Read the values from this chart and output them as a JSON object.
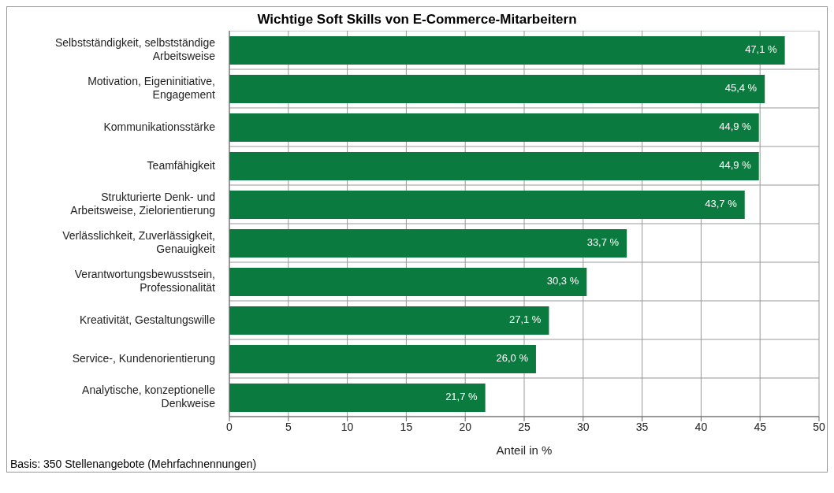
{
  "chart_data": {
    "type": "bar",
    "orientation": "horizontal",
    "title": "Wichtige Soft Skills von E-Commerce-Mitarbeitern",
    "xlabel": "Anteil in %",
    "categories": [
      "Selbstständigkeit, selbstständige Arbeitsweise",
      "Motivation, Eigeninitiative, Engagement",
      "Kommunikationsstärke",
      "Teamfähigkeit",
      "Strukturierte Denk- und Arbeitsweise, Zielorientierung",
      "Verlässlichkeit, Zuverlässigkeit, Genauigkeit",
      "Verantwortungsbewusstsein, Professionalität",
      "Kreativität, Gestaltungswille",
      "Service-, Kundenorientierung",
      "Analytische, konzeptionelle Denkweise"
    ],
    "values": [
      47.1,
      45.4,
      44.9,
      44.9,
      43.7,
      33.7,
      30.3,
      27.1,
      26.0,
      21.7
    ],
    "value_labels": [
      "47,1 %",
      "45,4 %",
      "44,9 %",
      "44,9 %",
      "43,7 %",
      "33,7 %",
      "30,3 %",
      "27,1 %",
      "26,0 %",
      "21,7 %"
    ],
    "color": "#0b7a3e",
    "xlim": [
      0,
      50
    ],
    "xticks": [
      0,
      5,
      10,
      15,
      20,
      25,
      30,
      35,
      40,
      45,
      50
    ],
    "grid": true,
    "annotations": [
      "Basis: 350 Stellenangebote (Mehrfachnennungen)"
    ]
  }
}
